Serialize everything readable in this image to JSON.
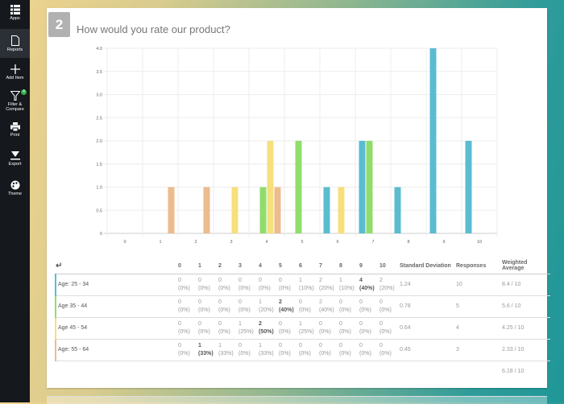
{
  "sidebar": {
    "items": [
      {
        "label": "Apps",
        "icon": "apps-icon"
      },
      {
        "label": "Reports",
        "icon": "report-icon",
        "active": true
      },
      {
        "label": "Add Item",
        "icon": "plus-icon"
      },
      {
        "label": "Filter & Compare",
        "icon": "filter-icon",
        "badge": "4"
      },
      {
        "label": "Print",
        "icon": "print-icon"
      },
      {
        "label": "Export",
        "icon": "export-icon"
      },
      {
        "label": "Theme",
        "icon": "palette-icon"
      }
    ]
  },
  "question": {
    "number": "2",
    "title": "How would you rate our product?"
  },
  "chart_data": {
    "type": "bar",
    "categories": [
      "0",
      "1",
      "2",
      "3",
      "4",
      "5",
      "6",
      "7",
      "8",
      "9",
      "10"
    ],
    "ylim": [
      0,
      4
    ],
    "yticks": [
      "0",
      "0.5",
      "1.0",
      "1.5",
      "2.0",
      "2.5",
      "3.0",
      "3.5",
      "4.0"
    ],
    "grid": true,
    "series": [
      {
        "name": "Age: 25 - 34",
        "color": "#5bbcd0",
        "values": [
          0,
          0,
          0,
          0,
          0,
          0,
          1,
          2,
          1,
          4,
          2
        ]
      },
      {
        "name": "Age 35 - 44",
        "color": "#91dd6c",
        "values": [
          0,
          0,
          0,
          0,
          1,
          2,
          0,
          2,
          0,
          0,
          0
        ]
      },
      {
        "name": "Age 45 - 54",
        "color": "#f6e07c",
        "values": [
          0,
          0,
          0,
          1,
          2,
          0,
          1,
          0,
          0,
          0,
          0
        ]
      },
      {
        "name": "Age: 55 - 64",
        "color": "#ecbb8e",
        "values": [
          0,
          1,
          1,
          0,
          1,
          0,
          0,
          0,
          0,
          0,
          0
        ]
      }
    ]
  },
  "table": {
    "headers": [
      "0",
      "1",
      "2",
      "3",
      "4",
      "5",
      "6",
      "7",
      "8",
      "9",
      "10",
      "Standard Deviation",
      "Responses",
      "Weighted Average"
    ],
    "rows": [
      {
        "label": "Age: 25 - 34",
        "counts": [
          "0",
          "0",
          "0",
          "0",
          "0",
          "0",
          "1",
          "2",
          "1",
          "4",
          "2"
        ],
        "pcts": [
          "(0%)",
          "(0%)",
          "(0%)",
          "(0%)",
          "(0%)",
          "(0%)",
          "(10%)",
          "(20%)",
          "(10%)",
          "(40%)",
          "(20%)"
        ],
        "bold": [
          9
        ],
        "sd": "1.24",
        "responses": "10",
        "avg": "8.4 / 10"
      },
      {
        "label": "Age 35 - 44",
        "counts": [
          "0",
          "0",
          "0",
          "0",
          "1",
          "2",
          "0",
          "2",
          "0",
          "0",
          "0"
        ],
        "pcts": [
          "(0%)",
          "(0%)",
          "(0%)",
          "(0%)",
          "(20%)",
          "(40%)",
          "(0%)",
          "(40%)",
          "(0%)",
          "(0%)",
          "(0%)"
        ],
        "bold": [
          5
        ],
        "sd": "0.78",
        "responses": "5",
        "avg": "5.6 / 10"
      },
      {
        "label": "Age 45 - 54",
        "counts": [
          "0",
          "0",
          "0",
          "1",
          "2",
          "0",
          "1",
          "0",
          "0",
          "0",
          "0"
        ],
        "pcts": [
          "(0%)",
          "(0%)",
          "(0%)",
          "(25%)",
          "(50%)",
          "(0%)",
          "(25%)",
          "(0%)",
          "(0%)",
          "(0%)",
          "(0%)"
        ],
        "bold": [
          4
        ],
        "sd": "0.64",
        "responses": "4",
        "avg": "4.25 / 10"
      },
      {
        "label": "Age: 55 - 64",
        "counts": [
          "0",
          "1",
          "1",
          "0",
          "1",
          "0",
          "0",
          "0",
          "0",
          "0",
          "0"
        ],
        "pcts": [
          "(0%)",
          "(33%)",
          "(33%)",
          "(0%)",
          "(33%)",
          "(0%)",
          "(0%)",
          "(0%)",
          "(0%)",
          "(0%)",
          "(0%)"
        ],
        "bold": [
          1
        ],
        "sd": "0.45",
        "responses": "3",
        "avg": "2.33 / 10"
      }
    ],
    "overall_avg": "6.18 / 10"
  }
}
